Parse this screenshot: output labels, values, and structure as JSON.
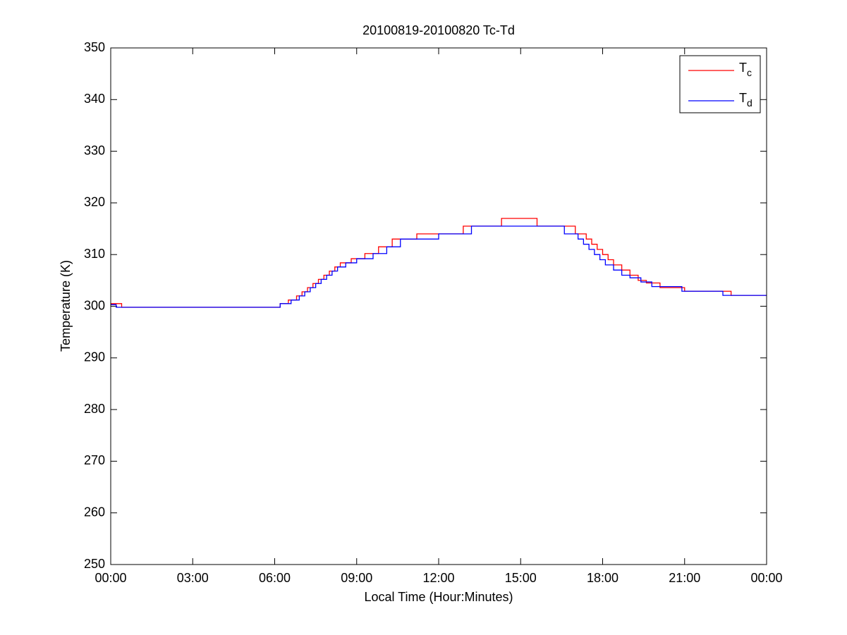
{
  "chart_data": {
    "type": "line",
    "title": "20100819-20100820 Tc-Td",
    "xlabel": "Local Time (Hour:Minutes)",
    "ylabel": "Temperature (K)",
    "xlim": [
      0,
      24
    ],
    "xticks": [
      {
        "value": 0,
        "label": "00:00"
      },
      {
        "value": 3,
        "label": "03:00"
      },
      {
        "value": 6,
        "label": "06:00"
      },
      {
        "value": 9,
        "label": "09:00"
      },
      {
        "value": 12,
        "label": "12:00"
      },
      {
        "value": 15,
        "label": "15:00"
      },
      {
        "value": 18,
        "label": "18:00"
      },
      {
        "value": 21,
        "label": "21:00"
      },
      {
        "value": 24,
        "label": "00:00"
      }
    ],
    "ylim": [
      250,
      350
    ],
    "yticks": [
      250,
      260,
      270,
      280,
      290,
      300,
      310,
      320,
      330,
      340,
      350
    ],
    "grid": false,
    "legend": "upper right",
    "series": [
      {
        "name": "Tc",
        "color": "#ff0000",
        "x": [
          0,
          0.4,
          0.4,
          6.2,
          6.2,
          6.5,
          6.5,
          6.8,
          6.8,
          7.0,
          7.0,
          7.2,
          7.2,
          7.4,
          7.4,
          7.6,
          7.6,
          7.8,
          7.8,
          8.0,
          8.0,
          8.2,
          8.2,
          8.4,
          8.4,
          8.8,
          8.8,
          9.3,
          9.3,
          9.8,
          9.8,
          10.3,
          10.3,
          11.2,
          11.2,
          12.9,
          12.9,
          14.3,
          14.3,
          15.6,
          15.6,
          17.0,
          17.0,
          17.4,
          17.4,
          17.6,
          17.6,
          17.8,
          17.8,
          18.0,
          18.0,
          18.2,
          18.2,
          18.4,
          18.4,
          18.7,
          18.7,
          19.0,
          19.0,
          19.3,
          19.3,
          19.6,
          19.6,
          20.1,
          20.1,
          21.0,
          21.0,
          22.7,
          22.7,
          24
        ],
        "values": [
          300.5,
          300.5,
          299.8,
          299.8,
          300.5,
          300.5,
          301.2,
          301.2,
          302,
          302,
          302.8,
          302.8,
          303.6,
          303.6,
          304.4,
          304.4,
          305.2,
          305.2,
          306,
          306,
          306.8,
          306.8,
          307.6,
          307.6,
          308.4,
          308.4,
          309.2,
          309.2,
          310.2,
          310.2,
          311.5,
          311.5,
          313,
          313,
          314,
          314,
          315.5,
          315.5,
          317,
          317,
          315.5,
          315.5,
          314,
          314,
          313,
          313,
          312,
          312,
          311,
          311,
          310,
          310,
          309,
          309,
          308,
          308,
          307,
          307,
          306,
          306,
          305,
          305,
          304.5,
          304.5,
          303.6,
          303.6,
          302.9,
          302.9,
          302.1,
          302.1
        ]
      },
      {
        "name": "Td",
        "color": "#0000ff",
        "x": [
          0,
          0.2,
          0.2,
          6.2,
          6.2,
          6.6,
          6.6,
          6.9,
          6.9,
          7.1,
          7.1,
          7.3,
          7.3,
          7.5,
          7.5,
          7.7,
          7.7,
          7.9,
          7.9,
          8.1,
          8.1,
          8.3,
          8.3,
          8.6,
          8.6,
          9.0,
          9.0,
          9.6,
          9.6,
          10.1,
          10.1,
          10.6,
          10.6,
          12.0,
          12.0,
          13.2,
          13.2,
          16.6,
          16.6,
          17.1,
          17.1,
          17.3,
          17.3,
          17.5,
          17.5,
          17.7,
          17.7,
          17.9,
          17.9,
          18.1,
          18.1,
          18.4,
          18.4,
          18.7,
          18.7,
          19.0,
          19.0,
          19.4,
          19.4,
          19.8,
          19.8,
          20.9,
          20.9,
          22.4,
          22.4,
          24
        ],
        "values": [
          300.3,
          300.3,
          299.8,
          299.8,
          300.5,
          300.5,
          301.2,
          301.2,
          302,
          302,
          302.8,
          302.8,
          303.6,
          303.6,
          304.4,
          304.4,
          305.2,
          305.2,
          306,
          306,
          306.8,
          306.8,
          307.6,
          307.6,
          308.4,
          308.4,
          309.2,
          309.2,
          310.2,
          310.2,
          311.5,
          311.5,
          313,
          313,
          314,
          314,
          315.5,
          315.5,
          314,
          314,
          313,
          313,
          312,
          312,
          311,
          311,
          310,
          310,
          309,
          309,
          308,
          308,
          307,
          307,
          306,
          306,
          305.5,
          305.5,
          304.7,
          304.7,
          303.8,
          303.8,
          302.9,
          302.9,
          302.1,
          302.1
        ]
      }
    ]
  }
}
